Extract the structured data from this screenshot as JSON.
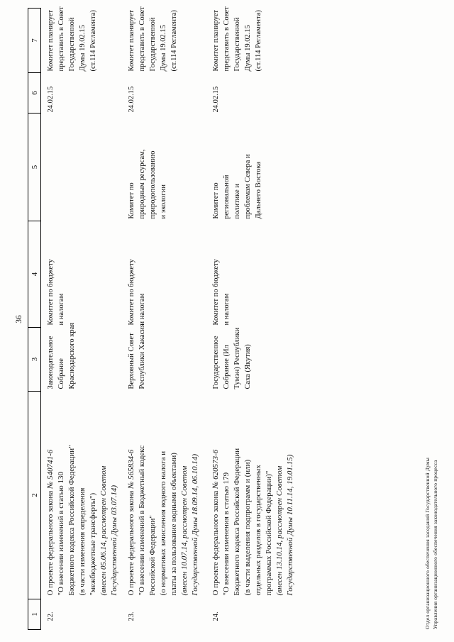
{
  "page": {
    "number": "36"
  },
  "table": {
    "columns": [
      "1",
      "2",
      "3",
      "4",
      "5",
      "6",
      "7"
    ],
    "rows": [
      {
        "num": "22.",
        "law_title_pre": "О проекте федерального закона ",
        "law_title_num": "№ 540741-6",
        "law_lines": [
          "\"О внесении изменений в статью 130",
          "Бюджетного кодекса Российской Федерации\"",
          "(в части изменения определения",
          "\"межбюджетные трансферты\")"
        ],
        "law_note_lines": [
          "(внесен 05.06.14, рассмотрен Советом",
          "Государственной Думы 03.07.14)"
        ],
        "initiator_lines": [
          "Законодательное",
          "Собрание",
          "Краснодарского края"
        ],
        "committee_lines": [
          "Комитет по бюджету",
          "и налогам"
        ],
        "co_committee_lines": [],
        "date": "24.02.15",
        "plan_lines": [
          "Комитет планирует",
          "представить в Совет",
          "Государственной",
          "Думы 19.02.15",
          "(ст.114 Регламента)"
        ]
      },
      {
        "num": "23.",
        "law_title_pre": "О проекте федерального закона ",
        "law_title_num": "№ 565834-6",
        "law_lines": [
          "\"О внесении изменений в Бюджетный кодекс",
          "Российской Федерации\"",
          "(о нормативах зачисления водного налога и",
          "платы за пользование водными объектами)"
        ],
        "law_note_lines": [
          "(внесен 10.07.14, рассмотрен Советом",
          "Государственной Думы 18.09.14, 06.10.14)"
        ],
        "initiator_lines": [
          "Верховный Совет",
          "Республики Хакасия"
        ],
        "committee_lines": [
          "Комитет по бюджету",
          "и налогам"
        ],
        "co_committee_lines": [
          "Комитет по",
          "природным ресурсам,",
          "природопользованию",
          "и экологии"
        ],
        "date": "24.02.15",
        "plan_lines": [
          "Комитет планирует",
          "представить в Совет",
          "Государственной",
          "Думы 19.02.15",
          "(ст.114 Регламента)"
        ]
      },
      {
        "num": "24.",
        "law_title_pre": "О проекте федерального закона ",
        "law_title_num": "№ 620573-6",
        "law_lines": [
          "\"О внесении изменения в статью 179",
          "Бюджетного кодекса Российской Федерации",
          "(в части выделения подпрограмм и (или)",
          "отдельных разделов в государственных",
          "программах Российской Федерации)\""
        ],
        "law_note_lines": [
          "(внесен 13.10.14, рассмотрен Советом",
          "Государственной Думы 10.11.14, 19.01.15)"
        ],
        "initiator_lines": [
          "Государственное",
          "Собрание (Ил",
          "Тумэн) Республики",
          "Саха (Якутия)"
        ],
        "committee_lines": [
          "Комитет по бюджету",
          "и налогам"
        ],
        "co_committee_lines": [
          "Комитет по",
          "региональной",
          "политике и",
          "проблемам Севера и",
          "Дальнего Востока"
        ],
        "date": "24.02.15",
        "plan_lines": [
          "Комитет планирует",
          "представить в Совет",
          "Государственной",
          "Думы 19.02.15",
          "(ст.114 Регламента)"
        ]
      }
    ]
  },
  "footer": {
    "line1": "Отдел организационного обеспечения заседаний Государственной Думы",
    "line2": "Управления организационного обеспечения законодательного процесса"
  }
}
